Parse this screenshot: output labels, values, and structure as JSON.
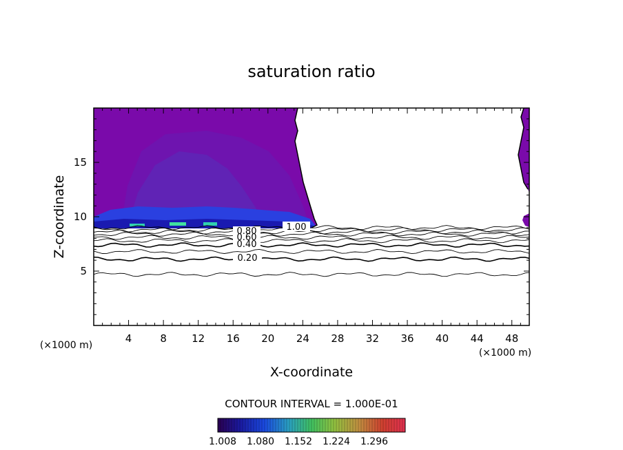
{
  "chart_data": {
    "type": "contour",
    "title": "saturation ratio",
    "xlabel": "X-coordinate",
    "ylabel": "Z-coordinate",
    "x_unit_label": "(×1000 m)",
    "y_unit_label": "(×1000 m)",
    "xlim": [
      0,
      50
    ],
    "ylim": [
      0,
      20
    ],
    "x_ticks": [
      4,
      8,
      12,
      16,
      20,
      24,
      28,
      32,
      36,
      40,
      44,
      48
    ],
    "y_ticks": [
      5,
      10,
      15
    ],
    "contour_interval_text": "CONTOUR INTERVAL = 1.000E-01",
    "contour_levels": [
      0.1,
      0.2,
      0.3,
      0.4,
      0.5,
      0.6,
      0.7,
      0.8,
      0.9,
      1.0
    ],
    "contour_labels": [
      "1.00",
      "0.80",
      "0.60",
      "0.40",
      "0.20"
    ],
    "contour_heights_km": [
      {
        "level": 0.1,
        "z": 4.7
      },
      {
        "level": 0.2,
        "z": 6.1
      },
      {
        "level": 0.3,
        "z": 6.8
      },
      {
        "level": 0.4,
        "z": 7.4
      },
      {
        "level": 0.5,
        "z": 7.8
      },
      {
        "level": 0.6,
        "z": 8.1
      },
      {
        "level": 0.7,
        "z": 8.4
      },
      {
        "level": 0.8,
        "z": 8.6
      },
      {
        "level": 0.9,
        "z": 8.8
      },
      {
        "level": 1.0,
        "z": 9.0
      }
    ],
    "supersaturated_regions": [
      {
        "x_range": [
          0,
          25
        ],
        "z_range": [
          9.0,
          20
        ],
        "approx_value": 1.008
      },
      {
        "x_range": [
          49,
          50
        ],
        "z_range": [
          9.5,
          20
        ],
        "approx_value": 1.008
      }
    ],
    "colorbar": {
      "tick_labels": [
        "1.008",
        "1.080",
        "1.152",
        "1.224",
        "1.296"
      ],
      "colors": [
        "#2a0050",
        "#1a1aa0",
        "#1a4ae0",
        "#2aa0c0",
        "#40c060",
        "#90c040",
        "#c09040",
        "#d04030",
        "#e03050"
      ]
    }
  }
}
